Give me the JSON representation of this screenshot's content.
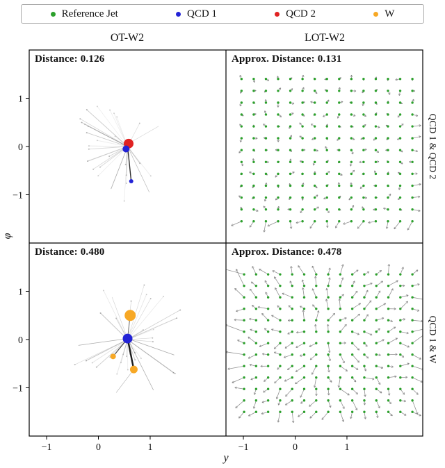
{
  "figure": {
    "columns": [
      "OT-W2",
      "LOT-W2"
    ],
    "row_labels": [
      "QCD 1 & QCD 2",
      "QCD 1 & W"
    ]
  },
  "legend": {
    "items": [
      {
        "name": "reference-jet",
        "label": "Reference Jet",
        "color": "#2ca02c"
      },
      {
        "name": "qcd1",
        "label": "QCD 1",
        "color": "#2323d6"
      },
      {
        "name": "qcd2",
        "label": "QCD 2",
        "color": "#e02222"
      },
      {
        "name": "w",
        "label": "W",
        "color": "#f7a825"
      }
    ]
  },
  "axis": {
    "xlabel": "y",
    "ylabel": "φ",
    "xticks": [
      "−1",
      "0",
      "1"
    ],
    "xtick_vals": [
      -1,
      0,
      1
    ],
    "yticks": [
      "1",
      "0",
      "−1"
    ],
    "ytick_vals": [
      1,
      0,
      -1
    ],
    "xlim": [
      -1.9,
      1.9
    ],
    "ylim": [
      -2,
      2
    ],
    "grid": false
  },
  "chart_data": [
    {
      "name": "ot-qcd1-qcd2",
      "type": "scatter",
      "column": "OT-W2",
      "row": "QCD 1 & QCD 2",
      "annotation": "Distance: 0.126",
      "distance": 0.126,
      "markers": [
        {
          "x": 0.02,
          "y": 0.06,
          "r": 7,
          "color": "#e02222",
          "name": "qcd2-jet"
        },
        {
          "x": -0.03,
          "y": -0.05,
          "r": 5,
          "color": "#2323d6",
          "name": "qcd1-jet"
        },
        {
          "x": 0.07,
          "y": -0.72,
          "r": 3,
          "color": "#2323d6",
          "name": "qcd1-particle"
        }
      ],
      "lines": [
        [
          0,
          0,
          0.07,
          -0.72,
          "#1a1a1a",
          1.4,
          0.9
        ],
        [
          0,
          0,
          -0.32,
          -0.88,
          "#555555",
          0.8,
          0.5
        ],
        [
          0,
          0,
          0.42,
          -0.95,
          "#666666",
          0.7,
          0.45
        ],
        [
          0,
          0.05,
          0.6,
          0.42,
          "#888888",
          0.6,
          0.35
        ],
        [
          0,
          0,
          -0.55,
          0.3,
          "#888888",
          0.6,
          0.3
        ]
      ],
      "rays": {
        "count": 26,
        "seed": 11,
        "cx": 0,
        "cy": 0,
        "r_min": 0.3,
        "r_max": 1.15
      }
    },
    {
      "name": "lot-qcd1-qcd2",
      "type": "quiver",
      "column": "LOT-W2",
      "row": "QCD 1 & QCD 2",
      "annotation": "Approx. Distance: 0.131",
      "approx_distance": 0.131,
      "grid": {
        "x_min": -1.6,
        "x_max": 1.7,
        "nx": 15,
        "phi_min": -1.55,
        "phi_max": 1.4,
        "ny": 13
      },
      "dot_color": "#2ca02c",
      "dot_r": 1.7,
      "arrow": {
        "mode": "random",
        "seed": 5,
        "min_len": 2,
        "max_len": 7,
        "color": "#7f7f7f"
      }
    },
    {
      "name": "ot-qcd1-w",
      "type": "scatter",
      "column": "OT-W2",
      "row": "QCD 1 & W",
      "annotation": "Distance: 0.480",
      "distance": 0.48,
      "markers": [
        {
          "x": 0.05,
          "y": 0.5,
          "r": 8,
          "color": "#f7a825",
          "name": "w-particle"
        },
        {
          "x": 0.0,
          "y": 0.02,
          "r": 7,
          "color": "#2323d6",
          "name": "qcd1-jet"
        },
        {
          "x": 0.12,
          "y": -0.62,
          "r": 5.5,
          "color": "#f7a825",
          "name": "w-particle"
        },
        {
          "x": -0.28,
          "y": -0.35,
          "r": 4,
          "color": "#f7a825",
          "name": "w-particle"
        }
      ],
      "lines": [
        [
          0,
          0.02,
          0.12,
          -0.62,
          "#111111",
          2.4,
          0.95
        ],
        [
          0,
          0.02,
          -0.28,
          -0.35,
          "#222222",
          1.2,
          0.8
        ],
        [
          0.05,
          0.5,
          0,
          0.02,
          "#333333",
          1.0,
          0.7
        ],
        [
          0,
          0.02,
          0.9,
          -0.32,
          "#555555",
          0.8,
          0.5
        ],
        [
          0,
          0.02,
          -0.95,
          -0.12,
          "#555555",
          0.8,
          0.5
        ],
        [
          0,
          0.02,
          0.5,
          -1.05,
          "#555555",
          0.8,
          0.45
        ],
        [
          0.12,
          -0.62,
          -0.22,
          -1.1,
          "#666666",
          0.7,
          0.45
        ],
        [
          0,
          0.02,
          -0.3,
          0.88,
          "#777777",
          0.6,
          0.35
        ]
      ],
      "rays": {
        "count": 30,
        "seed": 23,
        "cx": 0,
        "cy": 0,
        "r_min": 0.3,
        "r_max": 1.2
      }
    },
    {
      "name": "lot-qcd1-w",
      "type": "quiver",
      "column": "LOT-W2",
      "row": "QCD 1 & W",
      "annotation": "Approx. Distance: 0.478",
      "approx_distance": 0.478,
      "grid": {
        "x_min": -1.55,
        "x_max": 1.7,
        "nx": 15,
        "phi_min": -1.5,
        "phi_max": 1.35,
        "ny": 13
      },
      "dot_color": "#2ca02c",
      "dot_r": 1.7,
      "arrow": {
        "mode": "radial",
        "seed": 9,
        "min_len": 6,
        "max_len": 16,
        "color": "#7f7f7f"
      }
    }
  ]
}
